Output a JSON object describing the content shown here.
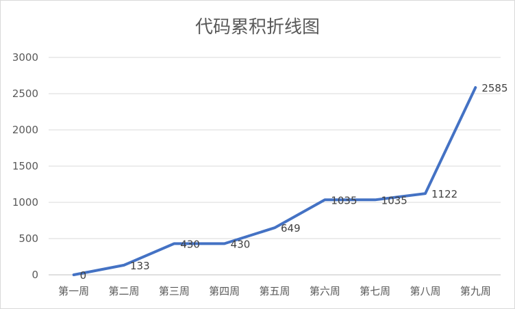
{
  "chart_data": {
    "type": "line",
    "title": "代码累积折线图",
    "categories": [
      "第一周",
      "第二周",
      "第三周",
      "第四周",
      "第五周",
      "第六周",
      "第七周",
      "第八周",
      "第九周"
    ],
    "series": [
      {
        "values": [
          0,
          133,
          430,
          430,
          649,
          1035,
          1035,
          1122,
          2585
        ]
      }
    ],
    "ylim": [
      0,
      3000
    ],
    "yticks": [
      0,
      500,
      1000,
      1500,
      2000,
      2500,
      3000
    ],
    "grid": true,
    "legend": "none",
    "data_labels": true,
    "line_color": "#4472c4"
  }
}
